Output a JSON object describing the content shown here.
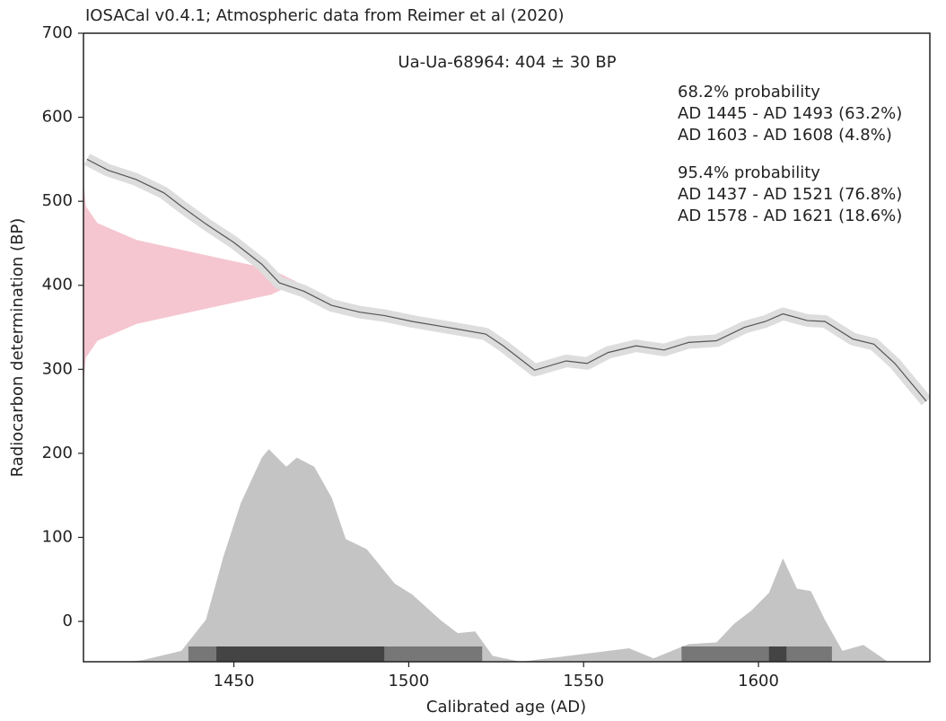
{
  "chart_data": {
    "type": "calibration",
    "title": "IOSACal v0.4.1; Atmospheric data from Reimer et al (2020)",
    "sample_label": "Ua-Ua-68964: 404 ± 30 BP",
    "summary": [
      "68.2% probability",
      "AD 1445 - AD 1493 (63.2%)",
      "AD 1603 - AD 1608 (4.8%)",
      "95.4% probability",
      "AD 1437 - AD 1521 (76.8%)",
      "AD 1578 - AD 1621 (18.6%)"
    ],
    "xlabel": "Calibrated age (AD)",
    "ylabel": "Radiocarbon determination (BP)",
    "xlim": [
      1407,
      1649
    ],
    "ylim": [
      -48,
      700
    ],
    "xticks": [
      1450,
      1500,
      1550,
      1600
    ],
    "yticks": [
      0,
      100,
      200,
      300,
      400,
      500,
      600,
      700
    ],
    "curve": {
      "color": "#555555",
      "band_color": "#dddddd",
      "x": [
        1408,
        1414,
        1422,
        1430,
        1435,
        1442,
        1450,
        1458,
        1463,
        1470,
        1478,
        1486,
        1493,
        1501,
        1511,
        1522,
        1527,
        1536,
        1545,
        1551,
        1557,
        1565,
        1573,
        1580,
        1588,
        1596,
        1602,
        1607,
        1614,
        1619,
        1627,
        1633,
        1639,
        1648
      ],
      "values": [
        550,
        537,
        526,
        510,
        494,
        473,
        451,
        425,
        403,
        393,
        376,
        368,
        364,
        357,
        350,
        342,
        328,
        299,
        310,
        307,
        320,
        328,
        323,
        332,
        334,
        350,
        357,
        366,
        358,
        357,
        336,
        330,
        307,
        262
      ]
    },
    "radiocarbon": {
      "color": "#f5c6d0",
      "y": [
        254,
        284,
        314,
        334,
        354,
        374,
        389,
        404,
        419,
        434,
        454,
        474,
        494,
        524,
        554
      ],
      "x": [
        1407,
        1407,
        1407.7,
        1411,
        1422.2,
        1444,
        1460.8,
        1468,
        1460.8,
        1444,
        1422.2,
        1411,
        1407.7,
        1407,
        1407
      ]
    },
    "calibrated": {
      "color": "#c4c4c4",
      "x": [
        1407,
        1420,
        1424,
        1435,
        1442,
        1447,
        1452,
        1458,
        1460,
        1465,
        1468,
        1473,
        1478,
        1482,
        1488,
        1496,
        1501,
        1509,
        1514,
        1519,
        1524,
        1532,
        1563,
        1570,
        1580,
        1588,
        1593,
        1598,
        1603,
        1607,
        1611,
        1615,
        1619,
        1624,
        1630,
        1637,
        1649
      ],
      "values": [
        -48,
        -48,
        -46,
        -35,
        2,
        77,
        141,
        195,
        205,
        184,
        195,
        184,
        147,
        98,
        86,
        45,
        32,
        2,
        -14,
        -12,
        -41,
        -48,
        -32,
        -44,
        -27,
        -25,
        -3,
        13,
        34,
        75,
        39,
        36,
        2,
        -35,
        -28,
        -48,
        -48
      ]
    },
    "hpd95": {
      "color": "#777777",
      "ranges": [
        [
          1437,
          1521
        ],
        [
          1578,
          1621
        ]
      ]
    },
    "hpd68": {
      "color": "#444444",
      "ranges": [
        [
          1445,
          1493
        ],
        [
          1603,
          1608
        ]
      ]
    }
  }
}
